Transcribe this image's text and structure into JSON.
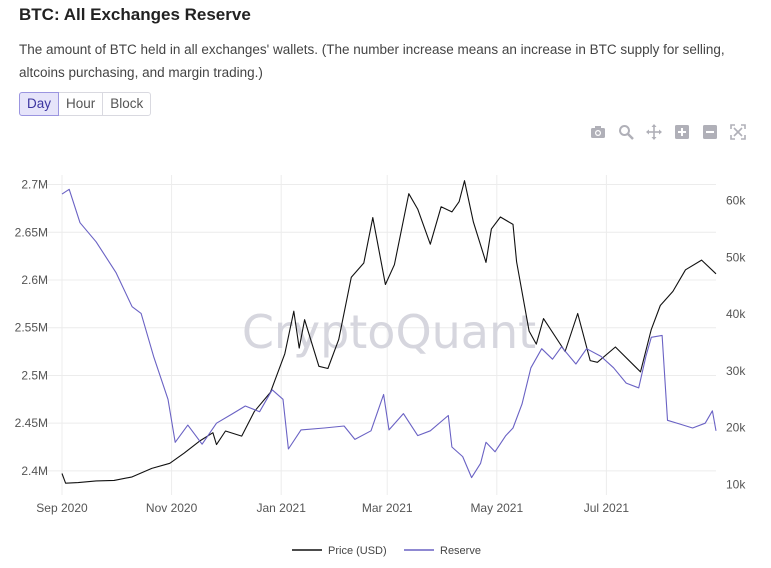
{
  "header": {
    "title": "BTC: All Exchanges Reserve",
    "description": "The amount of BTC held in all exchanges' wallets. (The number increase means an increase in BTC supply for selling, altcoins purchasing, and margin trading.)"
  },
  "tabs": [
    {
      "label": "Day",
      "active": true
    },
    {
      "label": "Hour",
      "active": false
    },
    {
      "label": "Block",
      "active": false
    }
  ],
  "modebar": [
    "camera-icon",
    "zoom-icon",
    "pan-icon",
    "zoom-in-icon",
    "zoom-out-icon",
    "autoscale-icon"
  ],
  "watermark": "CryptoQuant",
  "colors": {
    "price": "#111111",
    "reserve": "#6a62c4",
    "grid": "#ececec"
  },
  "chart_data": {
    "type": "line",
    "x_range": [
      "2020-09-01",
      "2021-08-31"
    ],
    "x_ticks": [
      {
        "date": "2020-09-01",
        "label": "Sep 2020"
      },
      {
        "date": "2020-11-01",
        "label": "Nov 2020"
      },
      {
        "date": "2021-01-01",
        "label": "Jan 2021"
      },
      {
        "date": "2021-03-01",
        "label": "Mar 2021"
      },
      {
        "date": "2021-05-01",
        "label": "May 2021"
      },
      {
        "date": "2021-07-01",
        "label": "Jul 2021"
      }
    ],
    "y_left": {
      "range": [
        2380000,
        2710000
      ],
      "ticks": [
        {
          "value": 2400000,
          "label": "2.4M"
        },
        {
          "value": 2450000,
          "label": "2.45M"
        },
        {
          "value": 2500000,
          "label": "2.5M"
        },
        {
          "value": 2550000,
          "label": "2.55M"
        },
        {
          "value": 2600000,
          "label": "2.6M"
        },
        {
          "value": 2650000,
          "label": "2.65M"
        },
        {
          "value": 2700000,
          "label": "2.7M"
        }
      ]
    },
    "y_right": {
      "range": [
        9000,
        64500
      ],
      "ticks": [
        {
          "value": 10000,
          "label": "10k"
        },
        {
          "value": 20000,
          "label": "20k"
        },
        {
          "value": 30000,
          "label": "30k"
        },
        {
          "value": 40000,
          "label": "40k"
        },
        {
          "value": 50000,
          "label": "50k"
        },
        {
          "value": 60000,
          "label": "60k"
        }
      ]
    },
    "grid": true,
    "legend_position": "bottom-center",
    "series": [
      {
        "name": "Price (USD)",
        "axis": "right",
        "points": [
          [
            "2020-09-01",
            11900
          ],
          [
            "2020-09-03",
            10200
          ],
          [
            "2020-09-10",
            10300
          ],
          [
            "2020-09-20",
            10600
          ],
          [
            "2020-09-30",
            10700
          ],
          [
            "2020-10-10",
            11300
          ],
          [
            "2020-10-21",
            12800
          ],
          [
            "2020-10-31",
            13700
          ],
          [
            "2020-11-08",
            15500
          ],
          [
            "2020-11-17",
            17700
          ],
          [
            "2020-11-24",
            19100
          ],
          [
            "2020-11-26",
            17000
          ],
          [
            "2020-12-01",
            19400
          ],
          [
            "2020-12-10",
            18500
          ],
          [
            "2020-12-17",
            22800
          ],
          [
            "2020-12-26",
            26200
          ],
          [
            "2021-01-03",
            33000
          ],
          [
            "2021-01-08",
            40500
          ],
          [
            "2021-01-11",
            34000
          ],
          [
            "2021-01-14",
            39000
          ],
          [
            "2021-01-22",
            30800
          ],
          [
            "2021-01-27",
            30400
          ],
          [
            "2021-02-02",
            35500
          ],
          [
            "2021-02-09",
            46500
          ],
          [
            "2021-02-16",
            49000
          ],
          [
            "2021-02-21",
            57000
          ],
          [
            "2021-02-28",
            45200
          ],
          [
            "2021-03-05",
            48700
          ],
          [
            "2021-03-13",
            61200
          ],
          [
            "2021-03-18",
            58500
          ],
          [
            "2021-03-25",
            52300
          ],
          [
            "2021-03-31",
            58900
          ],
          [
            "2021-04-06",
            58000
          ],
          [
            "2021-04-10",
            59800
          ],
          [
            "2021-04-13",
            63500
          ],
          [
            "2021-04-18",
            56200
          ],
          [
            "2021-04-25",
            49100
          ],
          [
            "2021-04-28",
            55000
          ],
          [
            "2021-05-03",
            57100
          ],
          [
            "2021-05-10",
            55800
          ],
          [
            "2021-05-12",
            49200
          ],
          [
            "2021-05-19",
            37000
          ],
          [
            "2021-05-23",
            34700
          ],
          [
            "2021-05-27",
            39200
          ],
          [
            "2021-06-08",
            33400
          ],
          [
            "2021-06-15",
            40100
          ],
          [
            "2021-06-22",
            31800
          ],
          [
            "2021-06-26",
            31500
          ],
          [
            "2021-07-06",
            34200
          ],
          [
            "2021-07-20",
            29800
          ],
          [
            "2021-07-26",
            37300
          ],
          [
            "2021-07-31",
            41500
          ],
          [
            "2021-08-07",
            44000
          ],
          [
            "2021-08-14",
            47800
          ],
          [
            "2021-08-23",
            49500
          ],
          [
            "2021-08-31",
            47100
          ]
        ]
      },
      {
        "name": "Reserve",
        "axis": "left",
        "points": [
          [
            "2020-09-01",
            2690000
          ],
          [
            "2020-09-05",
            2695000
          ],
          [
            "2020-09-11",
            2660000
          ],
          [
            "2020-09-20",
            2640000
          ],
          [
            "2020-10-01",
            2608000
          ],
          [
            "2020-10-10",
            2572000
          ],
          [
            "2020-10-15",
            2565000
          ],
          [
            "2020-10-22",
            2520000
          ],
          [
            "2020-10-30",
            2475000
          ],
          [
            "2020-11-03",
            2430000
          ],
          [
            "2020-11-10",
            2448000
          ],
          [
            "2020-11-18",
            2428000
          ],
          [
            "2020-11-26",
            2450000
          ],
          [
            "2020-12-05",
            2460000
          ],
          [
            "2020-12-12",
            2468000
          ],
          [
            "2020-12-20",
            2462000
          ],
          [
            "2020-12-27",
            2485000
          ],
          [
            "2021-01-02",
            2475000
          ],
          [
            "2021-01-05",
            2423000
          ],
          [
            "2021-01-12",
            2443000
          ],
          [
            "2021-01-25",
            2445000
          ],
          [
            "2021-02-05",
            2447000
          ],
          [
            "2021-02-11",
            2433000
          ],
          [
            "2021-02-20",
            2442000
          ],
          [
            "2021-02-27",
            2480000
          ],
          [
            "2021-03-02",
            2443000
          ],
          [
            "2021-03-10",
            2460000
          ],
          [
            "2021-03-18",
            2437000
          ],
          [
            "2021-03-25",
            2442000
          ],
          [
            "2021-04-04",
            2458000
          ],
          [
            "2021-04-06",
            2425000
          ],
          [
            "2021-04-12",
            2415000
          ],
          [
            "2021-04-17",
            2393000
          ],
          [
            "2021-04-22",
            2408000
          ],
          [
            "2021-04-25",
            2430000
          ],
          [
            "2021-04-30",
            2420000
          ],
          [
            "2021-05-06",
            2437000
          ],
          [
            "2021-05-10",
            2445000
          ],
          [
            "2021-05-15",
            2470000
          ],
          [
            "2021-05-20",
            2508000
          ],
          [
            "2021-05-26",
            2528000
          ],
          [
            "2021-06-01",
            2517000
          ],
          [
            "2021-06-06",
            2530000
          ],
          [
            "2021-06-14",
            2512000
          ],
          [
            "2021-06-20",
            2528000
          ],
          [
            "2021-06-28",
            2520000
          ],
          [
            "2021-07-05",
            2508000
          ],
          [
            "2021-07-12",
            2492000
          ],
          [
            "2021-07-19",
            2487000
          ],
          [
            "2021-07-23",
            2520000
          ],
          [
            "2021-07-26",
            2540000
          ],
          [
            "2021-08-01",
            2542000
          ],
          [
            "2021-08-04",
            2453000
          ],
          [
            "2021-08-11",
            2449000
          ],
          [
            "2021-08-18",
            2445000
          ],
          [
            "2021-08-25",
            2450000
          ],
          [
            "2021-08-29",
            2463000
          ],
          [
            "2021-08-31",
            2442000
          ]
        ]
      }
    ]
  }
}
